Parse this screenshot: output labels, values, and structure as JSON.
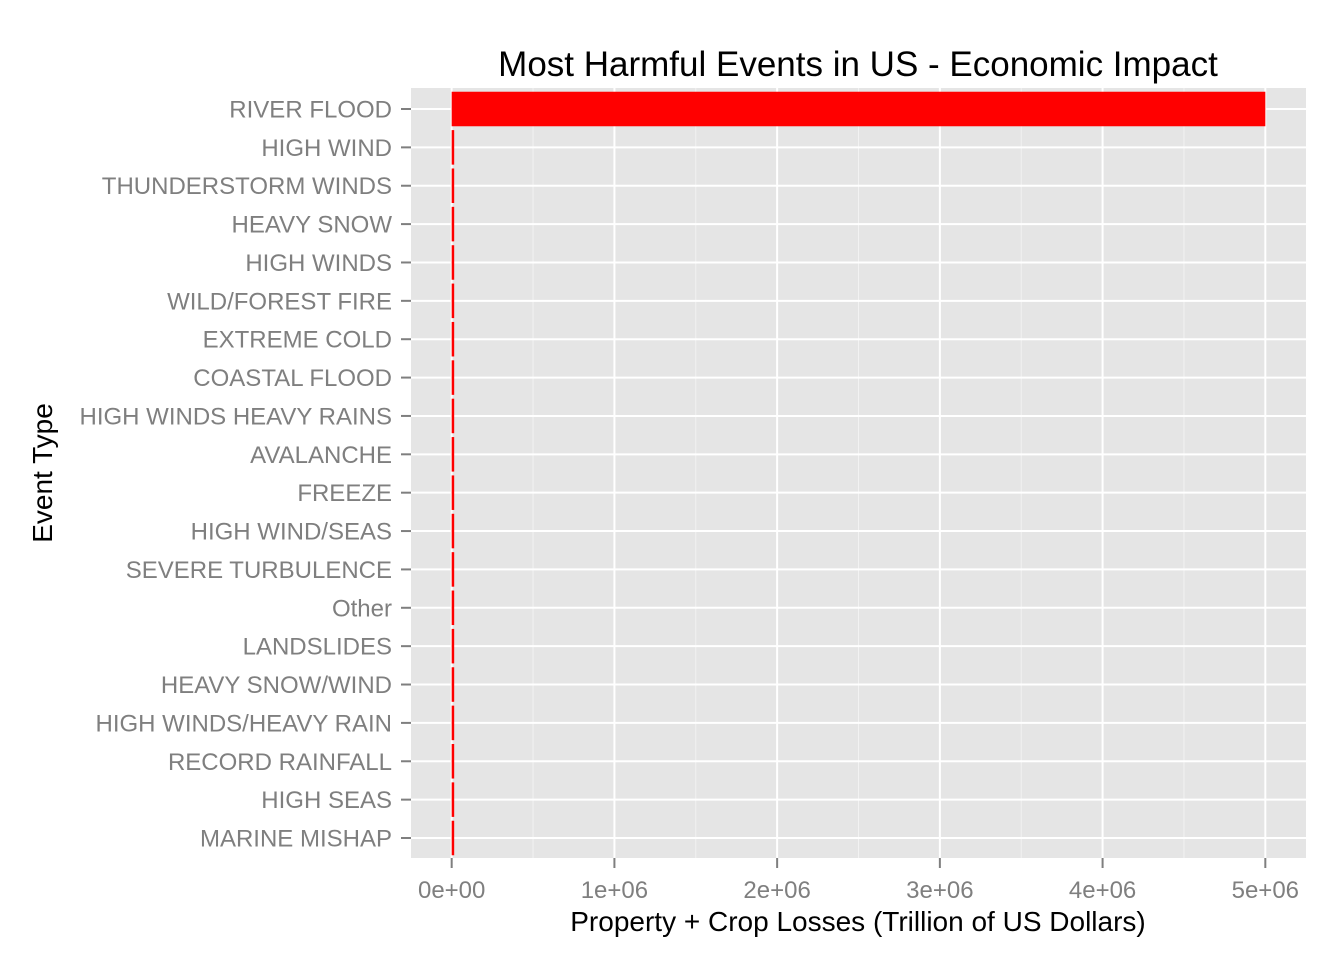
{
  "chart_data": {
    "type": "bar",
    "orientation": "horizontal",
    "title": "Most Harmful Events in US - Economic Impact",
    "xlabel": "Property + Crop Losses (Trillion of US Dollars)",
    "ylabel": "Event Type",
    "categories": [
      "RIVER FLOOD",
      "HIGH WIND",
      "THUNDERSTORM WINDS",
      "HEAVY SNOW",
      "HIGH WINDS",
      "WILD/FOREST FIRE",
      "EXTREME COLD",
      "COASTAL FLOOD",
      "HIGH WINDS HEAVY RAINS",
      "AVALANCHE",
      "FREEZE",
      "HIGH WIND/SEAS",
      "SEVERE TURBULENCE",
      "Other",
      "LANDSLIDES",
      "HEAVY SNOW/WIND",
      "HIGH WINDS/HEAVY RAIN",
      "RECORD RAINFALL",
      "HIGH SEAS",
      "MARINE MISHAP"
    ],
    "values": [
      5000000,
      5000,
      5000,
      5000,
      5000,
      5000,
      5000,
      5000,
      5000,
      5000,
      5000,
      5000,
      5000,
      5000,
      5000,
      5000,
      5000,
      5000,
      5000,
      5000
    ],
    "xlim": [
      -250000,
      5250000
    ],
    "xticks": [
      0,
      1000000,
      2000000,
      3000000,
      4000000,
      5000000
    ],
    "xtick_labels": [
      "0e+00",
      "1e+06",
      "2e+06",
      "3e+06",
      "4e+06",
      "5e+06"
    ],
    "grid": true,
    "colors": {
      "bar": "#ff0000",
      "panel_background": "#e5e5e5",
      "grid_major": "#ffffff",
      "grid_minor": "#f2f2f2",
      "tick_text": "#7f7f7f",
      "tick_mark": "#7f7f7f",
      "title_text": "#000000"
    }
  }
}
